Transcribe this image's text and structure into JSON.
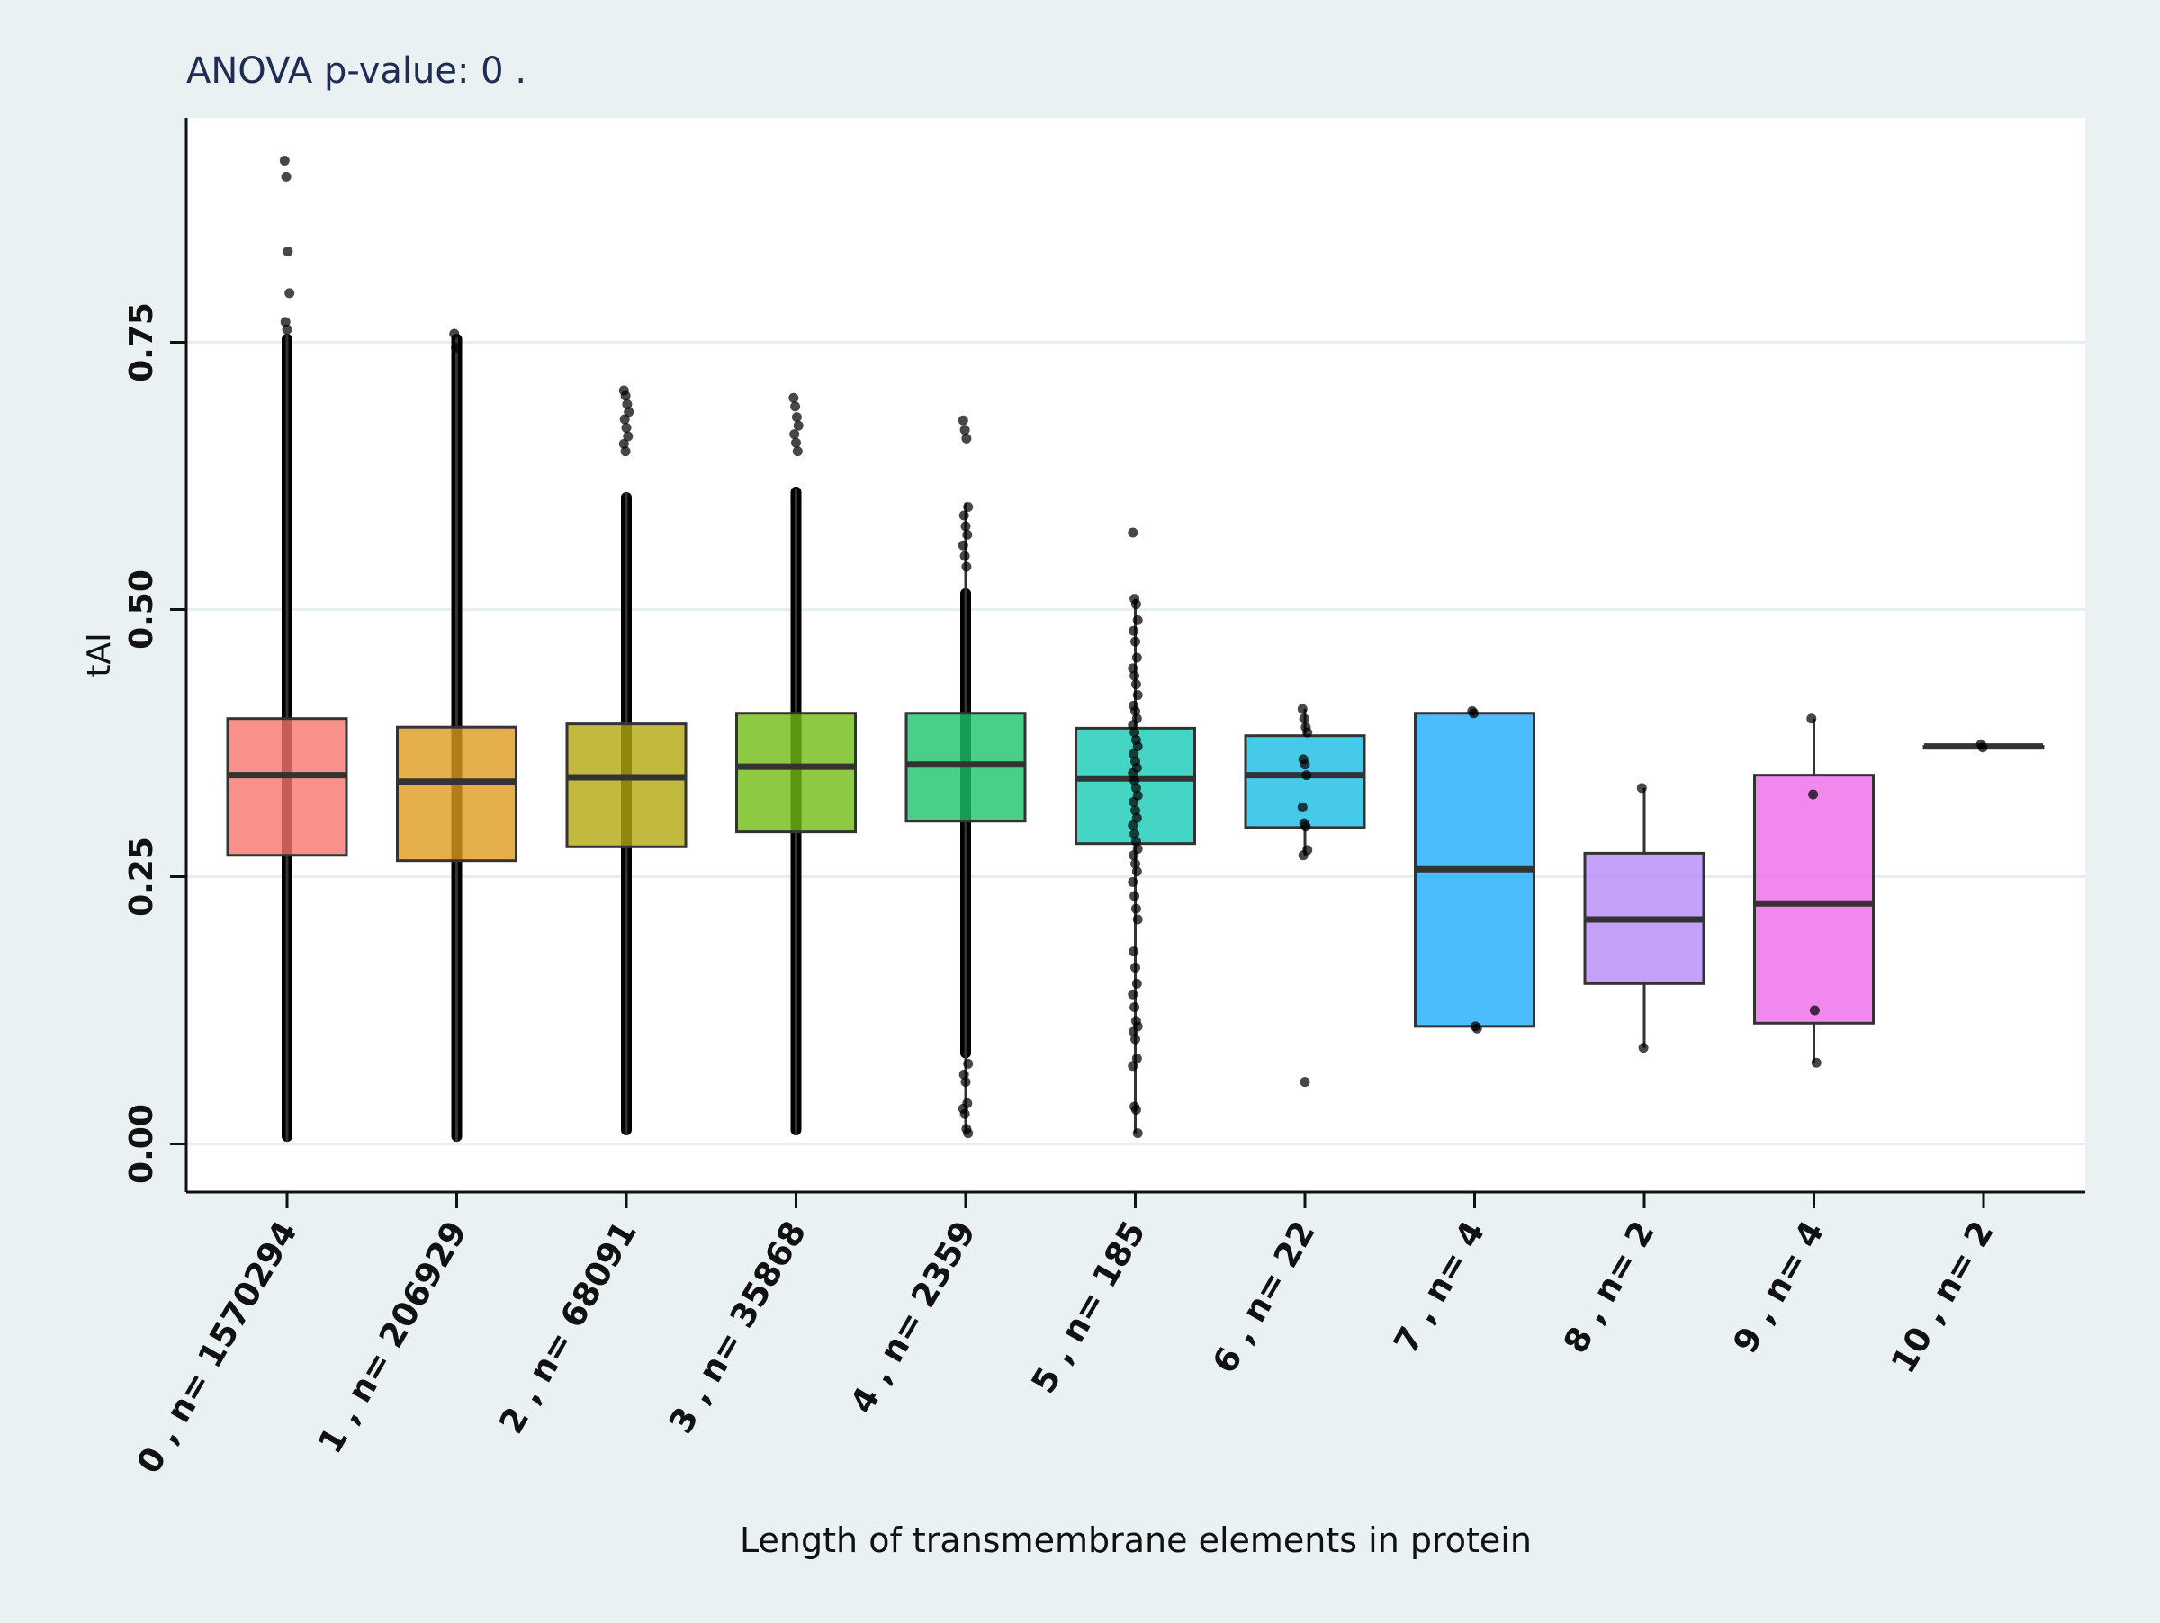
{
  "chart_data": {
    "type": "box",
    "title": "ANOVA p-value:  0 .",
    "xlabel": "Length of transmembrane elements in protein",
    "ylabel": "tAI",
    "ylim": [
      -0.045,
      0.96
    ],
    "yticks": [
      0.0,
      0.25,
      0.5,
      0.75
    ],
    "ytick_labels": [
      "0.00",
      "0.25",
      "0.50",
      "0.75"
    ],
    "grid": true,
    "categories": [
      "0 , n= 1570294",
      "1 , n= 206929",
      "2 , n= 68091",
      "3 , n= 35868",
      "4 , n= 2359",
      "5 , n= 185",
      "6 , n= 22",
      "7 , n= 4",
      "8 , n= 2",
      "9 , n= 4",
      "10 , n= 2"
    ],
    "colors": [
      "#f8766d",
      "#de9b1e",
      "#b3a90f",
      "#72bc14",
      "#1dc36a",
      "#15cab6",
      "#17bde3",
      "#1eacfc",
      "#b58af9",
      "#ec6ae8",
      "#fe61c1"
    ],
    "boxes": [
      {
        "q1": 0.27,
        "median": 0.345,
        "q3": 0.398,
        "whisker_low": 0.002,
        "whisker_high": 0.758,
        "n": 1570294
      },
      {
        "q1": 0.265,
        "median": 0.339,
        "q3": 0.39,
        "whisker_low": 0.002,
        "whisker_high": 0.758,
        "n": 206929
      },
      {
        "q1": 0.278,
        "median": 0.343,
        "q3": 0.393,
        "whisker_low": 0.008,
        "whisker_high": 0.61,
        "n": 68091
      },
      {
        "q1": 0.292,
        "median": 0.353,
        "q3": 0.403,
        "whisker_low": 0.008,
        "whisker_high": 0.613,
        "n": 35868
      },
      {
        "q1": 0.302,
        "median": 0.355,
        "q3": 0.403,
        "whisker_low": 0.01,
        "whisker_high": 0.6,
        "n": 2359
      },
      {
        "q1": 0.281,
        "median": 0.342,
        "q3": 0.389,
        "whisker_low": 0.01,
        "whisker_high": 0.51,
        "n": 185
      },
      {
        "q1": 0.296,
        "median": 0.345,
        "q3": 0.382,
        "whisker_low": 0.27,
        "whisker_high": 0.407,
        "n": 22
      },
      {
        "q1": 0.11,
        "median": 0.257,
        "q3": 0.403,
        "whisker_low": 0.11,
        "whisker_high": 0.403,
        "n": 4
      },
      {
        "q1": 0.15,
        "median": 0.21,
        "q3": 0.272,
        "whisker_low": 0.09,
        "whisker_high": 0.333,
        "n": 2
      },
      {
        "q1": 0.113,
        "median": 0.225,
        "q3": 0.345,
        "whisker_low": 0.076,
        "whisker_high": 0.398,
        "n": 4
      },
      {
        "q1": 0.372,
        "median": 0.372,
        "q3": 0.372,
        "whisker_low": 0.372,
        "whisker_high": 0.372,
        "n": 2
      }
    ],
    "dense_strips": [
      {
        "category": 0,
        "y_range": [
          0.002,
          0.758
        ]
      },
      {
        "category": 1,
        "y_range": [
          0.002,
          0.758
        ]
      },
      {
        "category": 2,
        "y_range": [
          0.008,
          0.61
        ]
      },
      {
        "category": 3,
        "y_range": [
          0.008,
          0.615
        ]
      },
      {
        "category": 4,
        "y_range": [
          0.08,
          0.52
        ]
      }
    ],
    "points": [
      {
        "category": 0,
        "y": [
          0.92,
          0.905,
          0.835,
          0.796,
          0.769,
          0.762
        ]
      },
      {
        "category": 1,
        "y": [
          0.758,
          0.745
        ]
      },
      {
        "category": 2,
        "y": [
          0.705,
          0.7,
          0.692,
          0.685,
          0.678,
          0.67,
          0.662,
          0.655,
          0.648
        ]
      },
      {
        "category": 3,
        "y": [
          0.698,
          0.69,
          0.68,
          0.672,
          0.664,
          0.656,
          0.648
        ]
      },
      {
        "category": 4,
        "y": [
          0.677,
          0.668,
          0.66,
          0.596,
          0.588,
          0.578,
          0.57,
          0.56,
          0.55,
          0.54,
          0.075,
          0.065,
          0.058,
          0.038,
          0.033,
          0.028,
          0.014,
          0.01
        ]
      },
      {
        "category": 5,
        "y": [
          0.572,
          0.51,
          0.505,
          0.49,
          0.48,
          0.47,
          0.455,
          0.445,
          0.438,
          0.43,
          0.42,
          0.41,
          0.405,
          0.398,
          0.392,
          0.385,
          0.378,
          0.372,
          0.365,
          0.358,
          0.352,
          0.347,
          0.34,
          0.333,
          0.326,
          0.32,
          0.312,
          0.305,
          0.298,
          0.29,
          0.283,
          0.276,
          0.27,
          0.262,
          0.255,
          0.245,
          0.232,
          0.22,
          0.21,
          0.18,
          0.165,
          0.15,
          0.14,
          0.128,
          0.115,
          0.11,
          0.105,
          0.098,
          0.08,
          0.073,
          0.035,
          0.032,
          0.01
        ]
      },
      {
        "category": 6,
        "y": [
          0.407,
          0.398,
          0.39,
          0.385,
          0.36,
          0.355,
          0.345,
          0.315,
          0.3,
          0.297,
          0.275,
          0.27,
          0.058
        ]
      },
      {
        "category": 7,
        "y": [
          0.405,
          0.403,
          0.11,
          0.108
        ]
      },
      {
        "category": 8,
        "y": [
          0.333,
          0.09
        ]
      },
      {
        "category": 9,
        "y": [
          0.398,
          0.327,
          0.125,
          0.076
        ]
      },
      {
        "category": 10,
        "y": [
          0.374,
          0.371
        ]
      }
    ]
  }
}
